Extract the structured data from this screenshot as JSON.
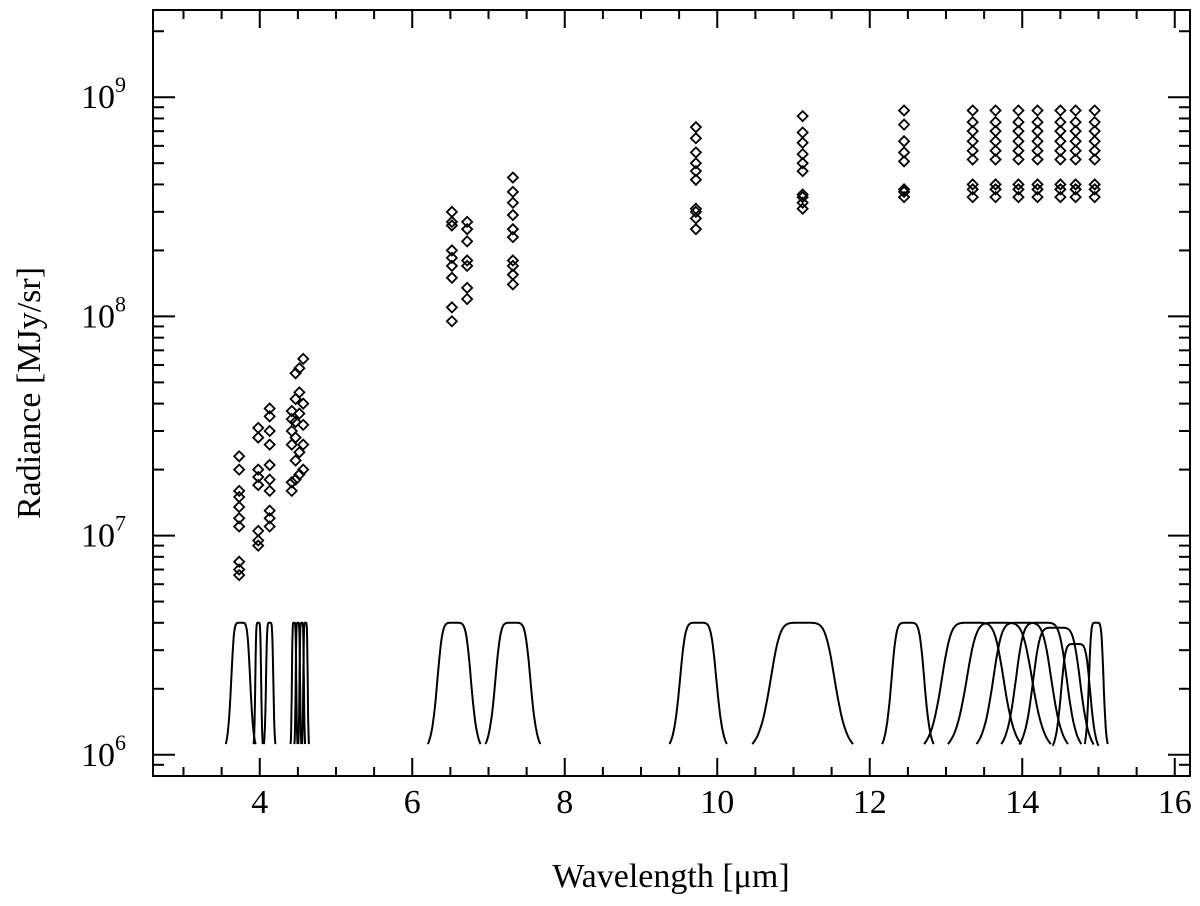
{
  "chart_data": {
    "type": "scatter",
    "xlabel": "Wavelength [μm]",
    "ylabel": "Radiance [MJy/sr]",
    "xlim": [
      2.6,
      16.2
    ],
    "ylim": [
      800000,
      2500000000
    ],
    "log_y": true,
    "x_ticks": [
      4,
      6,
      8,
      10,
      12,
      14,
      16
    ],
    "y_ticks": [
      {
        "value": 1000000,
        "base": "10",
        "exp": "6"
      },
      {
        "value": 10000000,
        "base": "10",
        "exp": "7"
      },
      {
        "value": 100000000,
        "base": "10",
        "exp": "8"
      },
      {
        "value": 1000000000,
        "base": "10",
        "exp": "9"
      }
    ],
    "marker": "diamond",
    "color": "#000000",
    "points": [
      [
        3.73,
        6600000.0
      ],
      [
        3.73,
        7000000.0
      ],
      [
        3.73,
        7600000.0
      ],
      [
        3.73,
        11000000.0
      ],
      [
        3.73,
        12000000.0
      ],
      [
        3.73,
        13500000.0
      ],
      [
        3.73,
        15000000.0
      ],
      [
        3.73,
        16000000.0
      ],
      [
        3.73,
        20000000.0
      ],
      [
        3.73,
        23000000.0
      ],
      [
        3.98,
        9000000.0
      ],
      [
        3.98,
        9500000.0
      ],
      [
        3.98,
        10500000.0
      ],
      [
        3.98,
        17000000.0
      ],
      [
        3.98,
        18500000.0
      ],
      [
        3.98,
        20000000.0
      ],
      [
        3.98,
        28000000.0
      ],
      [
        3.98,
        31000000.0
      ],
      [
        4.13,
        11000000.0
      ],
      [
        4.13,
        12000000.0
      ],
      [
        4.13,
        13000000.0
      ],
      [
        4.13,
        16000000.0
      ],
      [
        4.13,
        18000000.0
      ],
      [
        4.13,
        21000000.0
      ],
      [
        4.13,
        26000000.0
      ],
      [
        4.13,
        30000000.0
      ],
      [
        4.13,
        35000000.0
      ],
      [
        4.13,
        38000000.0
      ],
      [
        4.42,
        16000000.0
      ],
      [
        4.42,
        17500000.0
      ],
      [
        4.42,
        26000000.0
      ],
      [
        4.42,
        30000000.0
      ],
      [
        4.42,
        34000000.0
      ],
      [
        4.42,
        37000000.0
      ],
      [
        4.47,
        18000000.0
      ],
      [
        4.47,
        22000000.0
      ],
      [
        4.47,
        28000000.0
      ],
      [
        4.47,
        33000000.0
      ],
      [
        4.47,
        42000000.0
      ],
      [
        4.47,
        55000000.0
      ],
      [
        4.52,
        19000000.0
      ],
      [
        4.52,
        24000000.0
      ],
      [
        4.52,
        36000000.0
      ],
      [
        4.52,
        45000000.0
      ],
      [
        4.52,
        58000000.0
      ],
      [
        4.57,
        20000000.0
      ],
      [
        4.57,
        26000000.0
      ],
      [
        4.57,
        32000000.0
      ],
      [
        4.57,
        40000000.0
      ],
      [
        4.57,
        64000000.0
      ],
      [
        6.52,
        95000000.0
      ],
      [
        6.52,
        110000000.0
      ],
      [
        6.52,
        150000000.0
      ],
      [
        6.52,
        170000000.0
      ],
      [
        6.52,
        185000000.0
      ],
      [
        6.52,
        200000000.0
      ],
      [
        6.52,
        260000000.0
      ],
      [
        6.52,
        270000000.0
      ],
      [
        6.52,
        300000000.0
      ],
      [
        6.72,
        120000000.0
      ],
      [
        6.72,
        135000000.0
      ],
      [
        6.72,
        170000000.0
      ],
      [
        6.72,
        180000000.0
      ],
      [
        6.72,
        220000000.0
      ],
      [
        6.72,
        250000000.0
      ],
      [
        6.72,
        270000000.0
      ],
      [
        7.32,
        140000000.0
      ],
      [
        7.32,
        155000000.0
      ],
      [
        7.32,
        170000000.0
      ],
      [
        7.32,
        180000000.0
      ],
      [
        7.32,
        230000000.0
      ],
      [
        7.32,
        250000000.0
      ],
      [
        7.32,
        290000000.0
      ],
      [
        7.32,
        330000000.0
      ],
      [
        7.32,
        370000000.0
      ],
      [
        7.32,
        430000000.0
      ],
      [
        9.72,
        250000000.0
      ],
      [
        9.72,
        280000000.0
      ],
      [
        9.72,
        300000000.0
      ],
      [
        9.72,
        310000000.0
      ],
      [
        9.72,
        420000000.0
      ],
      [
        9.72,
        460000000.0
      ],
      [
        9.72,
        500000000.0
      ],
      [
        9.72,
        560000000.0
      ],
      [
        9.72,
        650000000.0
      ],
      [
        9.72,
        730000000.0
      ],
      [
        11.12,
        310000000.0
      ],
      [
        11.12,
        330000000.0
      ],
      [
        11.12,
        350000000.0
      ],
      [
        11.12,
        360000000.0
      ],
      [
        11.12,
        460000000.0
      ],
      [
        11.12,
        500000000.0
      ],
      [
        11.12,
        550000000.0
      ],
      [
        11.12,
        620000000.0
      ],
      [
        11.12,
        690000000.0
      ],
      [
        11.12,
        820000000.0
      ],
      [
        12.45,
        350000000.0
      ],
      [
        12.45,
        370000000.0
      ],
      [
        12.45,
        380000000.0
      ],
      [
        12.45,
        510000000.0
      ],
      [
        12.45,
        560000000.0
      ],
      [
        12.45,
        630000000.0
      ],
      [
        12.45,
        750000000.0
      ],
      [
        12.45,
        870000000.0
      ],
      [
        13.35,
        350000000.0
      ],
      [
        13.35,
        380000000.0
      ],
      [
        13.35,
        400000000.0
      ],
      [
        13.35,
        520000000.0
      ],
      [
        13.35,
        570000000.0
      ],
      [
        13.35,
        630000000.0
      ],
      [
        13.35,
        700000000.0
      ],
      [
        13.35,
        770000000.0
      ],
      [
        13.35,
        870000000.0
      ],
      [
        13.65,
        350000000.0
      ],
      [
        13.65,
        380000000.0
      ],
      [
        13.65,
        400000000.0
      ],
      [
        13.65,
        520000000.0
      ],
      [
        13.65,
        570000000.0
      ],
      [
        13.65,
        630000000.0
      ],
      [
        13.65,
        700000000.0
      ],
      [
        13.65,
        770000000.0
      ],
      [
        13.65,
        870000000.0
      ],
      [
        13.95,
        350000000.0
      ],
      [
        13.95,
        380000000.0
      ],
      [
        13.95,
        400000000.0
      ],
      [
        13.95,
        520000000.0
      ],
      [
        13.95,
        570000000.0
      ],
      [
        13.95,
        630000000.0
      ],
      [
        13.95,
        700000000.0
      ],
      [
        13.95,
        770000000.0
      ],
      [
        13.95,
        870000000.0
      ],
      [
        14.2,
        350000000.0
      ],
      [
        14.2,
        380000000.0
      ],
      [
        14.2,
        400000000.0
      ],
      [
        14.2,
        520000000.0
      ],
      [
        14.2,
        570000000.0
      ],
      [
        14.2,
        630000000.0
      ],
      [
        14.2,
        700000000.0
      ],
      [
        14.2,
        770000000.0
      ],
      [
        14.2,
        870000000.0
      ],
      [
        14.5,
        350000000.0
      ],
      [
        14.5,
        380000000.0
      ],
      [
        14.5,
        400000000.0
      ],
      [
        14.5,
        520000000.0
      ],
      [
        14.5,
        570000000.0
      ],
      [
        14.5,
        630000000.0
      ],
      [
        14.5,
        700000000.0
      ],
      [
        14.5,
        770000000.0
      ],
      [
        14.5,
        870000000.0
      ],
      [
        14.7,
        350000000.0
      ],
      [
        14.7,
        380000000.0
      ],
      [
        14.7,
        400000000.0
      ],
      [
        14.7,
        520000000.0
      ],
      [
        14.7,
        570000000.0
      ],
      [
        14.7,
        630000000.0
      ],
      [
        14.7,
        700000000.0
      ],
      [
        14.7,
        770000000.0
      ],
      [
        14.7,
        870000000.0
      ],
      [
        14.95,
        350000000.0
      ],
      [
        14.95,
        380000000.0
      ],
      [
        14.95,
        400000000.0
      ],
      [
        14.95,
        520000000.0
      ],
      [
        14.95,
        570000000.0
      ],
      [
        14.95,
        630000000.0
      ],
      [
        14.95,
        700000000.0
      ],
      [
        14.95,
        770000000.0
      ],
      [
        14.95,
        870000000.0
      ]
    ],
    "filter_curves": [
      {
        "center": 3.75,
        "width": 0.26,
        "top": 4000000.0
      },
      {
        "center": 3.98,
        "width": 0.08,
        "top": 4000000.0
      },
      {
        "center": 4.13,
        "width": 0.1,
        "top": 4000000.0
      },
      {
        "center": 4.45,
        "width": 0.06,
        "top": 4000000.0
      },
      {
        "center": 4.5,
        "width": 0.06,
        "top": 4000000.0
      },
      {
        "center": 4.55,
        "width": 0.06,
        "top": 4000000.0
      },
      {
        "center": 4.6,
        "width": 0.06,
        "top": 4000000.0
      },
      {
        "center": 6.55,
        "width": 0.46,
        "top": 4000000.0
      },
      {
        "center": 7.32,
        "width": 0.48,
        "top": 4000000.0
      },
      {
        "center": 9.75,
        "width": 0.5,
        "top": 4000000.0
      },
      {
        "center": 11.12,
        "width": 0.88,
        "top": 4000000.0
      },
      {
        "center": 12.5,
        "width": 0.45,
        "top": 4000000.0
      },
      {
        "center": 13.35,
        "width": 0.85,
        "top": 4000000.0
      },
      {
        "center": 13.7,
        "width": 0.9,
        "top": 4000000.0
      },
      {
        "center": 14.0,
        "width": 0.8,
        "top": 4000000.0
      },
      {
        "center": 14.25,
        "width": 0.7,
        "top": 4000000.0
      },
      {
        "center": 14.45,
        "width": 0.65,
        "top": 3800000.0
      },
      {
        "center": 14.7,
        "width": 0.4,
        "top": 3200000.0
      },
      {
        "center": 14.97,
        "width": 0.2,
        "top": 4000000.0
      }
    ],
    "grid": false,
    "legend": "none"
  }
}
